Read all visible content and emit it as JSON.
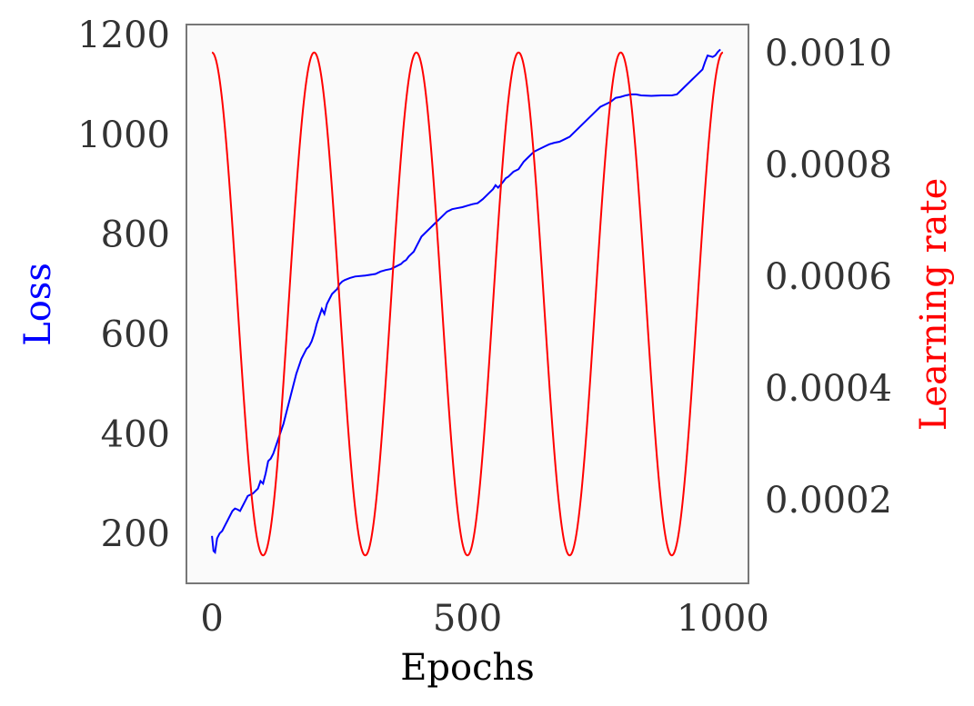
{
  "chart_data": {
    "type": "line",
    "xlabel": "Epochs",
    "x_ticks": [
      "0",
      "500",
      "1000"
    ],
    "x_tick_values": [
      0,
      500,
      1000
    ],
    "xlim": [
      -50,
      1050
    ],
    "left_axis": {
      "label": "Loss",
      "label_color": "#0000ff",
      "ylim": [
        100,
        1220
      ],
      "ticks": [
        "200",
        "400",
        "600",
        "800",
        "1000",
        "1200"
      ],
      "tick_values": [
        200,
        400,
        600,
        800,
        1000,
        1200
      ]
    },
    "right_axis": {
      "label": "Learning rate",
      "label_color": "#ff0000",
      "ylim": [
        5e-05,
        0.00105
      ],
      "ticks": [
        "0.0002",
        "0.0004",
        "0.0006",
        "0.0008",
        "0.0010"
      ],
      "tick_values": [
        0.0002,
        0.0004,
        0.0006,
        0.0008,
        0.001
      ]
    },
    "grid": false,
    "background_color": "#fafafa",
    "frame_color": "#777777",
    "series": [
      {
        "axis": "left",
        "color": "#0000ff",
        "points": [
          [
            0,
            195
          ],
          [
            3,
            165
          ],
          [
            6,
            162
          ],
          [
            10,
            190
          ],
          [
            15,
            200
          ],
          [
            20,
            205
          ],
          [
            25,
            215
          ],
          [
            30,
            225
          ],
          [
            35,
            235
          ],
          [
            40,
            245
          ],
          [
            45,
            250
          ],
          [
            50,
            248
          ],
          [
            55,
            245
          ],
          [
            60,
            255
          ],
          [
            65,
            265
          ],
          [
            70,
            275
          ],
          [
            80,
            280
          ],
          [
            90,
            290
          ],
          [
            95,
            305
          ],
          [
            100,
            300
          ],
          [
            105,
            320
          ],
          [
            110,
            345
          ],
          [
            115,
            350
          ],
          [
            120,
            360
          ],
          [
            125,
            375
          ],
          [
            130,
            390
          ],
          [
            135,
            405
          ],
          [
            140,
            420
          ],
          [
            145,
            440
          ],
          [
            150,
            460
          ],
          [
            155,
            480
          ],
          [
            160,
            500
          ],
          [
            165,
            520
          ],
          [
            170,
            535
          ],
          [
            175,
            550
          ],
          [
            180,
            560
          ],
          [
            185,
            570
          ],
          [
            190,
            575
          ],
          [
            195,
            585
          ],
          [
            200,
            600
          ],
          [
            205,
            620
          ],
          [
            210,
            635
          ],
          [
            215,
            650
          ],
          [
            220,
            640
          ],
          [
            225,
            660
          ],
          [
            230,
            670
          ],
          [
            235,
            680
          ],
          [
            240,
            685
          ],
          [
            245,
            690
          ],
          [
            250,
            700
          ],
          [
            255,
            705
          ],
          [
            260,
            708
          ],
          [
            270,
            712
          ],
          [
            280,
            715
          ],
          [
            300,
            717
          ],
          [
            320,
            720
          ],
          [
            330,
            725
          ],
          [
            340,
            728
          ],
          [
            350,
            730
          ],
          [
            360,
            735
          ],
          [
            370,
            740
          ],
          [
            375,
            745
          ],
          [
            380,
            748
          ],
          [
            385,
            755
          ],
          [
            390,
            760
          ],
          [
            395,
            765
          ],
          [
            400,
            775
          ],
          [
            405,
            785
          ],
          [
            410,
            795
          ],
          [
            420,
            805
          ],
          [
            430,
            815
          ],
          [
            440,
            825
          ],
          [
            450,
            835
          ],
          [
            460,
            845
          ],
          [
            470,
            850
          ],
          [
            480,
            852
          ],
          [
            490,
            854
          ],
          [
            500,
            857
          ],
          [
            510,
            860
          ],
          [
            520,
            862
          ],
          [
            530,
            870
          ],
          [
            540,
            880
          ],
          [
            550,
            890
          ],
          [
            555,
            898
          ],
          [
            560,
            893
          ],
          [
            570,
            905
          ],
          [
            575,
            912
          ],
          [
            580,
            915
          ],
          [
            590,
            925
          ],
          [
            600,
            930
          ],
          [
            610,
            945
          ],
          [
            620,
            955
          ],
          [
            630,
            965
          ],
          [
            640,
            970
          ],
          [
            650,
            975
          ],
          [
            660,
            980
          ],
          [
            670,
            983
          ],
          [
            680,
            985
          ],
          [
            690,
            990
          ],
          [
            700,
            995
          ],
          [
            710,
            1005
          ],
          [
            720,
            1015
          ],
          [
            730,
            1025
          ],
          [
            740,
            1035
          ],
          [
            750,
            1045
          ],
          [
            760,
            1055
          ],
          [
            770,
            1060
          ],
          [
            780,
            1065
          ],
          [
            790,
            1073
          ],
          [
            800,
            1075
          ],
          [
            810,
            1078
          ],
          [
            820,
            1080
          ],
          [
            830,
            1080
          ],
          [
            840,
            1078
          ],
          [
            860,
            1077
          ],
          [
            880,
            1078
          ],
          [
            900,
            1078
          ],
          [
            910,
            1080
          ],
          [
            920,
            1090
          ],
          [
            930,
            1100
          ],
          [
            940,
            1110
          ],
          [
            950,
            1120
          ],
          [
            960,
            1130
          ],
          [
            965,
            1145
          ],
          [
            970,
            1158
          ],
          [
            980,
            1155
          ],
          [
            985,
            1158
          ],
          [
            990,
            1165
          ],
          [
            995,
            1170
          ]
        ]
      },
      {
        "axis": "right",
        "color": "#ff0000",
        "formula": "cosine",
        "lr_min": 0.0001,
        "lr_max": 0.001,
        "period": 200,
        "x_start": 0,
        "x_end": 1000
      }
    ]
  }
}
